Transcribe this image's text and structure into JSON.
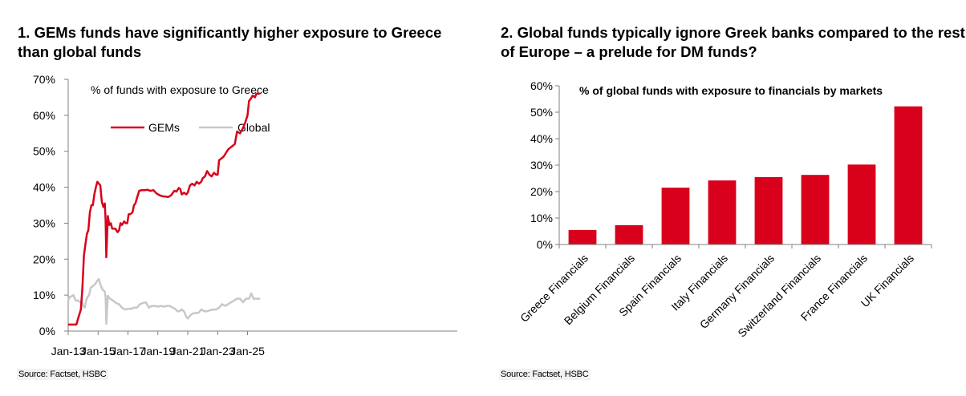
{
  "charts": {
    "left": {
      "title": "1. GEMs funds have significantly higher exposure to Greece than global funds",
      "source": "Source: Factset, HSBC"
    },
    "right": {
      "title": "2. Global funds typically ignore Greek banks compared to the rest of Europe – a prelude for DM funds?",
      "source": "Source: Factset, HSBC"
    }
  },
  "colors": {
    "gems": "#d9001b",
    "global": "#c8c8c8",
    "bar": "#d9001b",
    "axis": "#808080"
  },
  "chart_data": [
    {
      "type": "line",
      "title": "1. GEMs funds have significantly higher exposure to Greece than global funds",
      "inner_title": "% of funds with exposure to Greece",
      "xlabel": "",
      "ylabel": "",
      "x_ticks": [
        "Jan-13",
        "Jan-15",
        "Jan-17",
        "Jan-19",
        "Jan-21",
        "Jan-23",
        "Jan-25"
      ],
      "y_ticks": [
        "0%",
        "10%",
        "20%",
        "30%",
        "40%",
        "50%",
        "60%",
        "70%"
      ],
      "ylim": [
        0,
        70
      ],
      "xlim": [
        2013.0,
        2025.85
      ],
      "legend": {
        "placement": "top-left",
        "entries": [
          "GEMs",
          "Global"
        ]
      },
      "series": [
        {
          "name": "GEMs",
          "x": [
            2013.0,
            2013.2,
            2013.4,
            2013.55,
            2013.7,
            2013.85,
            2013.95,
            2014.05,
            2014.15,
            2014.25,
            2014.35,
            2014.45,
            2014.55,
            2014.65,
            2014.75,
            2014.85,
            2014.95,
            2015.05,
            2015.15,
            2015.25,
            2015.35,
            2015.45,
            2015.5,
            2015.55,
            2015.65,
            2015.75,
            2015.85,
            2015.95,
            2016.05,
            2016.15,
            2016.3,
            2016.4,
            2016.5,
            2016.6,
            2016.75,
            2016.85,
            2016.95,
            2017.05,
            2017.15,
            2017.3,
            2017.4,
            2017.5,
            2017.6,
            2017.75,
            2017.9,
            2018.1,
            2018.3,
            2018.5,
            2018.7,
            2018.9,
            2019.1,
            2019.3,
            2019.5,
            2019.7,
            2019.9,
            2020.1,
            2020.25,
            2020.4,
            2020.5,
            2020.6,
            2020.75,
            2020.9,
            2021.0,
            2021.15,
            2021.3,
            2021.45,
            2021.6,
            2021.75,
            2021.9,
            2022.0,
            2022.15,
            2022.3,
            2022.45,
            2022.6,
            2022.75,
            2022.9,
            2023.0,
            2023.1,
            2023.25,
            2023.4,
            2023.55,
            2023.7,
            2023.85,
            2024.0,
            2024.15,
            2024.3,
            2024.5,
            2024.7,
            2024.85,
            2025.0,
            2025.1,
            2025.2,
            2025.35,
            2025.5,
            2025.6,
            2025.75,
            2025.85
          ],
          "values": [
            1.8,
            1.8,
            1.8,
            1.8,
            4.0,
            6.0,
            12.0,
            21.0,
            24.0,
            27.0,
            28.0,
            33.0,
            35.0,
            35.0,
            38.0,
            40.0,
            41.5,
            41.0,
            40.5,
            36.0,
            34.5,
            35.5,
            31.0,
            20.5,
            32.0,
            29.5,
            30.0,
            28.5,
            28.5,
            28.5,
            27.5,
            28.0,
            30.0,
            29.5,
            30.5,
            30.0,
            30.0,
            32.5,
            32.5,
            33.0,
            35.0,
            35.5,
            37.0,
            39.0,
            39.2,
            39.2,
            39.3,
            39.0,
            39.2,
            38.3,
            37.8,
            37.5,
            37.4,
            37.3,
            37.8,
            39.0,
            38.8,
            39.8,
            39.5,
            38.0,
            38.5,
            38.0,
            38.5,
            40.5,
            41.0,
            40.5,
            41.5,
            41.0,
            41.5,
            42.5,
            43.0,
            44.5,
            43.5,
            43.0,
            44.0,
            43.5,
            43.5,
            47.5,
            48.0,
            48.5,
            49.5,
            50.5,
            51.0,
            51.5,
            52.0,
            55.5,
            55.0,
            56.5,
            58.0,
            60.0,
            64.0,
            64.5,
            65.5,
            65.0,
            66.0,
            66.0,
            66.0
          ]
        },
        {
          "name": "Global",
          "x": [
            2013.0,
            2013.1,
            2013.25,
            2013.35,
            2013.5,
            2013.65,
            2013.8,
            2013.9,
            2014.0,
            2014.1,
            2014.2,
            2014.3,
            2014.4,
            2014.5,
            2014.65,
            2014.8,
            2014.95,
            2015.05,
            2015.15,
            2015.3,
            2015.45,
            2015.5,
            2015.55,
            2015.65,
            2015.8,
            2016.0,
            2016.2,
            2016.4,
            2016.6,
            2016.8,
            2017.0,
            2017.2,
            2017.4,
            2017.6,
            2017.8,
            2018.0,
            2018.2,
            2018.4,
            2018.6,
            2018.8,
            2019.0,
            2019.2,
            2019.4,
            2019.6,
            2019.8,
            2020.0,
            2020.15,
            2020.3,
            2020.45,
            2020.6,
            2020.75,
            2020.9,
            2021.0,
            2021.2,
            2021.4,
            2021.6,
            2021.75,
            2021.9,
            2022.1,
            2022.3,
            2022.5,
            2022.7,
            2022.9,
            2023.1,
            2023.3,
            2023.5,
            2023.7,
            2023.9,
            2024.1,
            2024.3,
            2024.5,
            2024.7,
            2024.9,
            2025.1,
            2025.25,
            2025.4,
            2025.6,
            2025.85
          ],
          "values": [
            8.5,
            9.5,
            9.7,
            10.0,
            8.5,
            8.5,
            8.0,
            8.5,
            7.0,
            6.5,
            8.5,
            9.5,
            10.0,
            12.0,
            12.5,
            13.0,
            14.0,
            14.5,
            13.0,
            11.5,
            11.0,
            9.5,
            2.0,
            9.8,
            9.0,
            8.5,
            7.8,
            7.5,
            6.5,
            6.0,
            6.2,
            6.2,
            6.5,
            6.5,
            7.5,
            7.8,
            8.0,
            6.5,
            7.0,
            7.0,
            6.8,
            7.0,
            6.8,
            7.0,
            7.0,
            6.5,
            6.2,
            5.5,
            5.5,
            6.0,
            5.5,
            4.0,
            3.5,
            4.5,
            5.0,
            5.0,
            5.2,
            6.0,
            5.5,
            5.5,
            5.8,
            6.0,
            6.0,
            6.5,
            7.5,
            7.0,
            7.5,
            8.0,
            8.5,
            9.0,
            9.0,
            8.0,
            9.0,
            9.0,
            10.5,
            9.0,
            9.0,
            9.0
          ]
        }
      ]
    },
    {
      "type": "bar",
      "title": "2. Global funds typically ignore Greek banks compared to the rest of Europe – a prelude for DM funds?",
      "inner_title": "% of global funds with exposure to financials by markets",
      "xlabel": "",
      "ylabel": "",
      "categories": [
        "Greece Financials",
        "Belgium Financials",
        "Spain Financials",
        "Italy Financials",
        "Germany Financials",
        "Switzerland Financials",
        "France Financials",
        "UK Financials"
      ],
      "values": [
        5.5,
        7.3,
        21.5,
        24.2,
        25.5,
        26.3,
        30.2,
        52.2
      ],
      "y_ticks": [
        "0%",
        "10%",
        "20%",
        "30%",
        "40%",
        "50%",
        "60%"
      ],
      "ylim": [
        0,
        60
      ],
      "legend": null
    }
  ]
}
